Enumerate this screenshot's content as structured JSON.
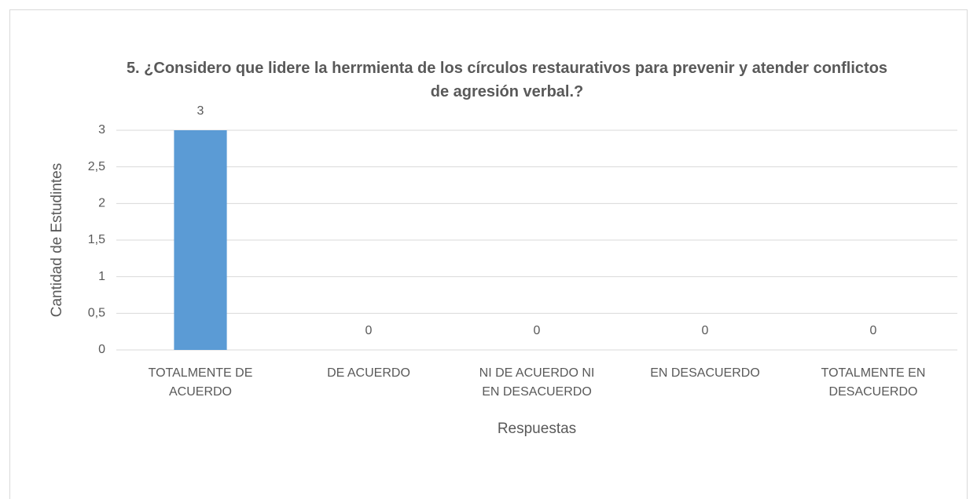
{
  "chart_data": {
    "type": "bar",
    "title": "5. ¿Considero que lidere la  herrmienta de los círculos restaurativos para prevenir y atender conflictos de agresión verbal.?",
    "x_label": "Respuestas",
    "y_label": "Cantidad de Estudintes",
    "categories": [
      "TOTALMENTE DE ACUERDO",
      "DE ACUERDO",
      "NI DE ACUERDO NI EN DESACUERDO",
      "EN DESACUERDO",
      "TOTALMENTE EN DESACUERDO"
    ],
    "values": [
      3,
      0,
      0,
      0,
      0
    ],
    "color": "#5b9bd5",
    "ylim": [
      0,
      3
    ],
    "yticks": [
      0,
      {
        "value": 0.5,
        "label": "0,5"
      },
      1,
      {
        "value": 1.5,
        "label": "1,5"
      },
      2,
      {
        "value": 2.5,
        "label": "2,5"
      },
      3
    ],
    "grid": true
  }
}
